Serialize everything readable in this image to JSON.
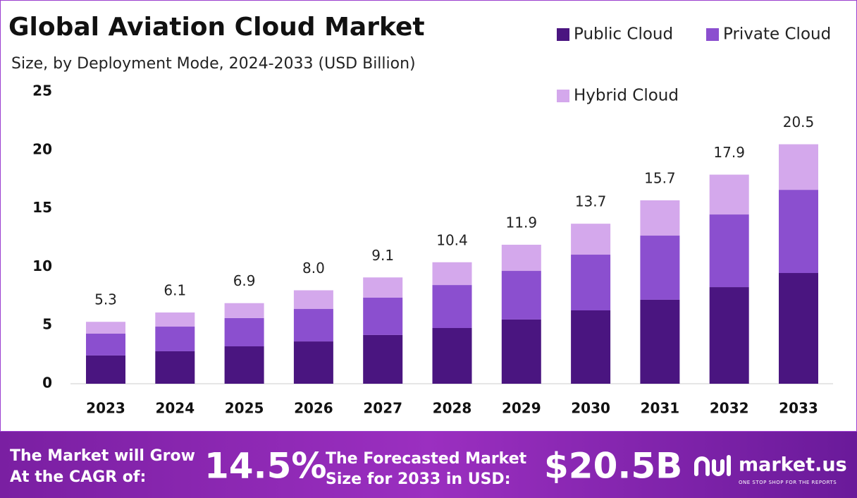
{
  "chart_data": {
    "type": "stacked-bar",
    "title": "Global Aviation Cloud Market",
    "subtitle": "Size, by Deployment Mode, 2024-2033 (USD Billion)",
    "categories": [
      "2023",
      "2024",
      "2025",
      "2026",
      "2027",
      "2028",
      "2029",
      "2030",
      "2031",
      "2032",
      "2033"
    ],
    "series": [
      {
        "name": "Public Cloud",
        "color": "#4a1580",
        "values": [
          2.42,
          2.78,
          3.2,
          3.62,
          4.17,
          4.77,
          5.5,
          6.28,
          7.19,
          8.27,
          9.48
        ]
      },
      {
        "name": "Private Cloud",
        "color": "#8b4fcf",
        "values": [
          1.87,
          2.11,
          2.42,
          2.78,
          3.2,
          3.68,
          4.16,
          4.77,
          5.49,
          6.22,
          7.12
        ]
      },
      {
        "name": "Hybrid Cloud",
        "color": "#d4a8ec",
        "values": [
          1.01,
          1.21,
          1.28,
          1.6,
          1.73,
          1.95,
          2.24,
          2.65,
          3.02,
          3.41,
          3.9
        ]
      }
    ],
    "totals": [
      5.3,
      6.1,
      6.9,
      8.0,
      9.1,
      10.4,
      11.9,
      13.7,
      15.7,
      17.9,
      20.5
    ],
    "total_labels": [
      "5.3",
      "6.1",
      "6.9",
      "8.0",
      "9.1",
      "10.4",
      "11.9",
      "13.7",
      "15.7",
      "17.9",
      "20.5"
    ],
    "ylim": [
      0,
      25
    ],
    "yticks": [
      0,
      5,
      10,
      15,
      20,
      25
    ],
    "grid": false
  },
  "banner": {
    "cagr_text": [
      "The Market will Grow",
      "At the CAGR of:"
    ],
    "cagr_value": "14.5%",
    "forecast_text": [
      "The Forecasted Market",
      "Size for 2033 in USD:"
    ],
    "forecast_value": "$20.5B",
    "logo": "market.us",
    "tagline": "ONE STOP SHOP FOR THE REPORTS"
  }
}
